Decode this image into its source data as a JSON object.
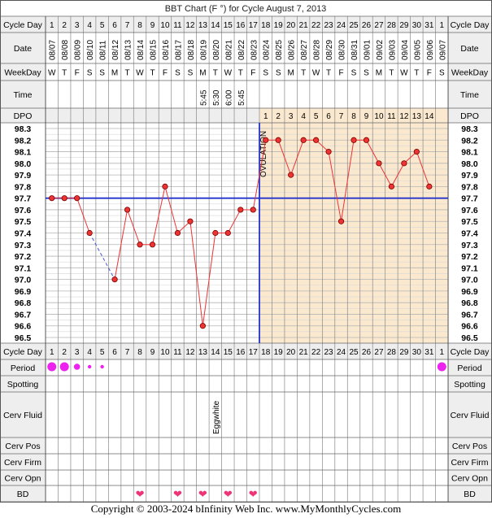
{
  "chart_data": {
    "type": "line",
    "title": "BBT Chart (F °) for Cycle August 7, 2013",
    "row_labels": {
      "cycle_day": "Cycle Day",
      "date": "Date",
      "weekday": "WeekDay",
      "time": "Time",
      "dpo": "DPO",
      "period": "Period",
      "spotting": "Spotting",
      "cerv_fluid": "Cerv Fluid",
      "cerv_pos": "Cerv Pos",
      "cerv_firm": "Cerv Firm",
      "cerv_opn": "Cerv Opn",
      "bd": "BD"
    },
    "cycle_days": [
      "1",
      "2",
      "3",
      "4",
      "5",
      "6",
      "7",
      "8",
      "9",
      "10",
      "11",
      "12",
      "13",
      "14",
      "15",
      "16",
      "17",
      "18",
      "19",
      "20",
      "21",
      "22",
      "23",
      "24",
      "25",
      "26",
      "27",
      "28",
      "29",
      "30",
      "31",
      "1"
    ],
    "dates": [
      "08/07",
      "08/08",
      "08/09",
      "08/10",
      "08/11",
      "08/12",
      "08/13",
      "08/14",
      "08/15",
      "08/16",
      "08/17",
      "08/18",
      "08/19",
      "08/20",
      "08/21",
      "08/22",
      "08/23",
      "08/24",
      "08/25",
      "08/26",
      "08/27",
      "08/28",
      "08/29",
      "08/30",
      "08/31",
      "09/01",
      "09/02",
      "09/03",
      "09/04",
      "09/05",
      "09/06",
      "09/07"
    ],
    "weekdays": [
      "W",
      "T",
      "F",
      "S",
      "S",
      "M",
      "T",
      "W",
      "T",
      "F",
      "S",
      "S",
      "M",
      "T",
      "W",
      "T",
      "F",
      "S",
      "S",
      "M",
      "T",
      "W",
      "T",
      "F",
      "S",
      "S",
      "M",
      "T",
      "W",
      "T",
      "F",
      "S"
    ],
    "times": [
      "",
      "",
      "",
      "",
      "",
      "",
      "",
      "",
      "",
      "",
      "",
      "",
      "5:45",
      "5:30",
      "6:00",
      "5:45",
      "",
      "",
      "",
      "",
      "",
      "",
      "",
      "",
      "",
      "",
      "",
      "",
      "",
      "",
      "",
      ""
    ],
    "dpo": [
      "",
      "",
      "",
      "",
      "",
      "",
      "",
      "",
      "",
      "",
      "",
      "",
      "",
      "",
      "",
      "",
      "",
      "1",
      "2",
      "3",
      "4",
      "5",
      "6",
      "7",
      "8",
      "9",
      "10",
      "11",
      "12",
      "13",
      "14",
      ""
    ],
    "temps": [
      97.7,
      97.7,
      97.7,
      97.4,
      null,
      97.0,
      97.6,
      97.3,
      97.3,
      97.8,
      97.4,
      97.5,
      96.6,
      97.4,
      97.4,
      97.6,
      97.6,
      98.2,
      98.2,
      97.9,
      98.2,
      98.2,
      98.1,
      97.5,
      98.2,
      98.2,
      98.0,
      97.8,
      98.0,
      98.1,
      97.8,
      null
    ],
    "y_ticks": [
      "98.3",
      "98.2",
      "98.1",
      "98.0",
      "97.9",
      "97.8",
      "97.7",
      "97.6",
      "97.5",
      "97.4",
      "97.3",
      "97.2",
      "97.1",
      "97.0",
      "96.9",
      "96.8",
      "96.7",
      "96.6",
      "96.5"
    ],
    "ylim": [
      96.5,
      98.3
    ],
    "coverline": 97.7,
    "ovulation_day_index": 16,
    "ovulation_label": "OVULATION",
    "period": [
      "heavy",
      "heavy",
      "medium",
      "light",
      "light",
      "",
      "",
      "",
      "",
      "",
      "",
      "",
      "",
      "",
      "",
      "",
      "",
      "",
      "",
      "",
      "",
      "",
      "",
      "",
      "",
      "",
      "",
      "",
      "",
      "",
      "",
      "heavy"
    ],
    "cerv_fluid": [
      "",
      "",
      "",
      "",
      "",
      "",
      "",
      "",
      "",
      "",
      "",
      "",
      "",
      "Eggwhite",
      "",
      "",
      "",
      "",
      "",
      "",
      "",
      "",
      "",
      "",
      "",
      "",
      "",
      "",
      "",
      "",
      "",
      ""
    ],
    "bd": [
      false,
      false,
      false,
      false,
      false,
      false,
      false,
      true,
      false,
      false,
      true,
      false,
      true,
      false,
      true,
      false,
      true,
      false,
      false,
      false,
      false,
      false,
      false,
      false,
      false,
      false,
      false,
      false,
      false,
      false,
      false,
      false
    ],
    "grid": true,
    "colors": {
      "line": "#e33",
      "coverline": "#2233cc",
      "ovulation": "#2233cc",
      "luteal_bg": "#fbe9cf",
      "header_bg": "#eeeeee",
      "period": "#ee22ee",
      "heart": "#ee3377"
    }
  },
  "footer": {
    "copyright": "Copyright © 2003-2024 bInfinity Web Inc.    www.MyMonthlyCycles.com"
  }
}
